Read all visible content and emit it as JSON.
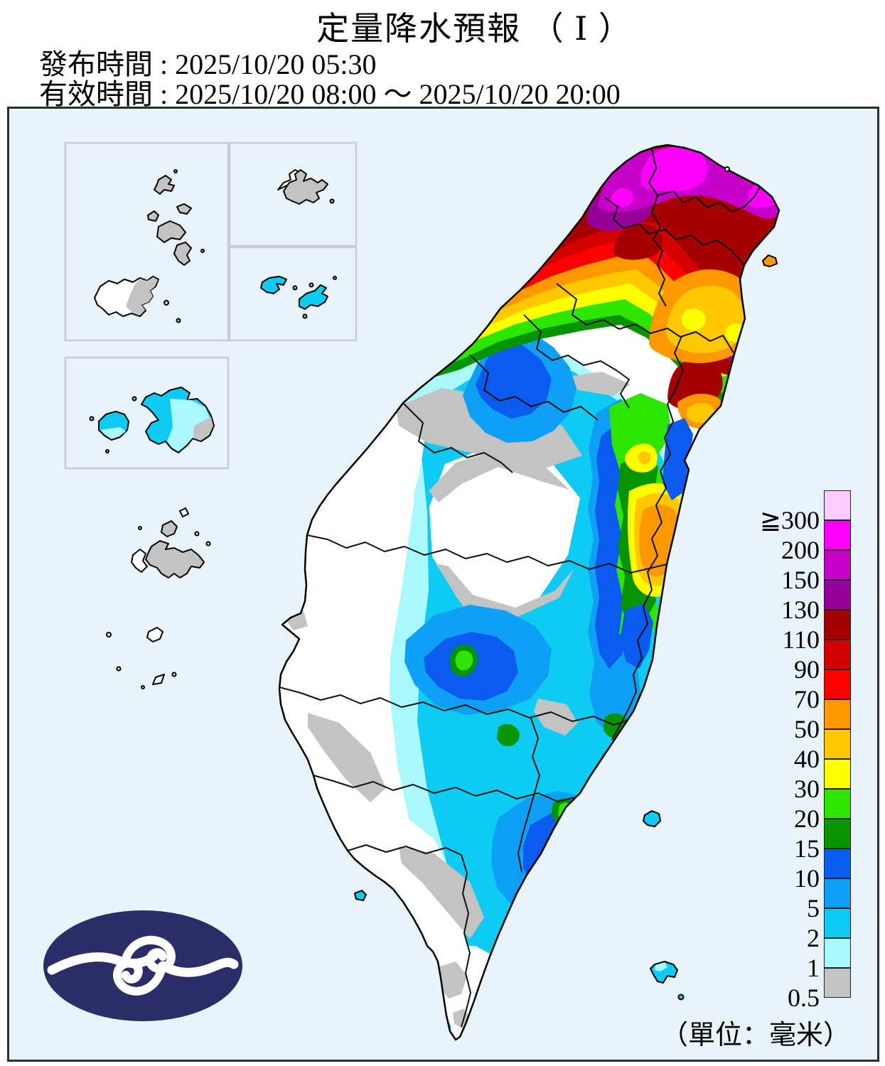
{
  "title": "定量降水預報 （ Ⅰ ）",
  "issued": {
    "label": "發布時間",
    "value": "2025/10/20 05:30",
    "line": "發布時間 : 2025/10/20 05:30"
  },
  "valid": {
    "label": "有效時間",
    "start": "2025/10/20 08:00",
    "end": "2025/10/20 20:00",
    "separator": "～",
    "line": "有效時間 : 2025/10/20 08:00 ～ 2025/10/20 20:00"
  },
  "unit_note": "（單位：毫米）",
  "legend": {
    "cells": [
      {
        "color": "#FFCCFF",
        "label": "≧300"
      },
      {
        "color": "#FB00FB",
        "label": "200"
      },
      {
        "color": "#C600C8",
        "label": "150"
      },
      {
        "color": "#950097",
        "label": "130"
      },
      {
        "color": "#A40000",
        "label": "110"
      },
      {
        "color": "#D40000",
        "label": "90"
      },
      {
        "color": "#FF0000",
        "label": "70"
      },
      {
        "color": "#FF9800",
        "label": "50"
      },
      {
        "color": "#FFC800",
        "label": "40"
      },
      {
        "color": "#FFFF00",
        "label": "30"
      },
      {
        "color": "#2EE500",
        "label": "20"
      },
      {
        "color": "#089400",
        "label": "15"
      },
      {
        "color": "#0B5BF0",
        "label": "10"
      },
      {
        "color": "#0DA0F5",
        "label": "5"
      },
      {
        "color": "#0FCBF2",
        "label": "2"
      },
      {
        "color": "#A8F8FC",
        "label": "1"
      },
      {
        "color": "#C3C3C3",
        "label": "0.5"
      }
    ]
  },
  "map": {
    "ocean_color": "#E8F3FA",
    "land_below_threshold_color": "#FFFFFF",
    "frame_color": "#2e2e2e",
    "inset_border_color": "#C9CCD4"
  },
  "logo": {
    "name": "central-weather-administration-logo",
    "color": "#2B2D69"
  }
}
